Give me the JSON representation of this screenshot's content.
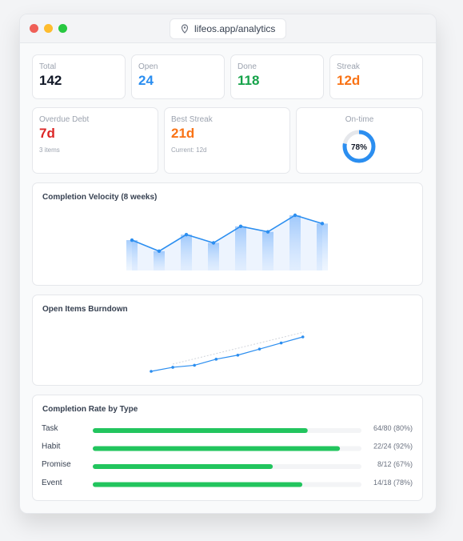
{
  "browser": {
    "url": "lifeos.app/analytics"
  },
  "stats": [
    {
      "label": "Total",
      "value": "142"
    },
    {
      "label": "Open",
      "value": "24"
    },
    {
      "label": "Done",
      "value": "118"
    },
    {
      "label": "Streak",
      "value": "12d"
    }
  ],
  "metrics": [
    {
      "label": "Overdue Debt",
      "value": "7d",
      "note": "3 items"
    },
    {
      "label": "Best Streak",
      "value": "21d",
      "note": "Current: 12d"
    }
  ],
  "on_time": {
    "label": "On-time",
    "value": 78,
    "value_label": "78%"
  },
  "velocity": {
    "title": "Completion Velocity (8 weeks)",
    "values": [
      11,
      7,
      13,
      10,
      16,
      14,
      20,
      17
    ]
  },
  "burndown": {
    "title": "Open Items Burndown",
    "values": [
      12,
      14,
      15,
      18,
      20,
      23,
      26,
      29
    ]
  },
  "completion": {
    "title": "Completion Rate by Type",
    "rows": [
      {
        "type": "Task",
        "value": 80,
        "label": "64/80 (80%)"
      },
      {
        "type": "Habit",
        "value": 92,
        "label": "22/24 (92%)"
      },
      {
        "type": "Promise",
        "value": 67,
        "label": "8/12 (67%)"
      },
      {
        "type": "Event",
        "value": 78,
        "label": "14/18 (78%)"
      }
    ]
  }
}
